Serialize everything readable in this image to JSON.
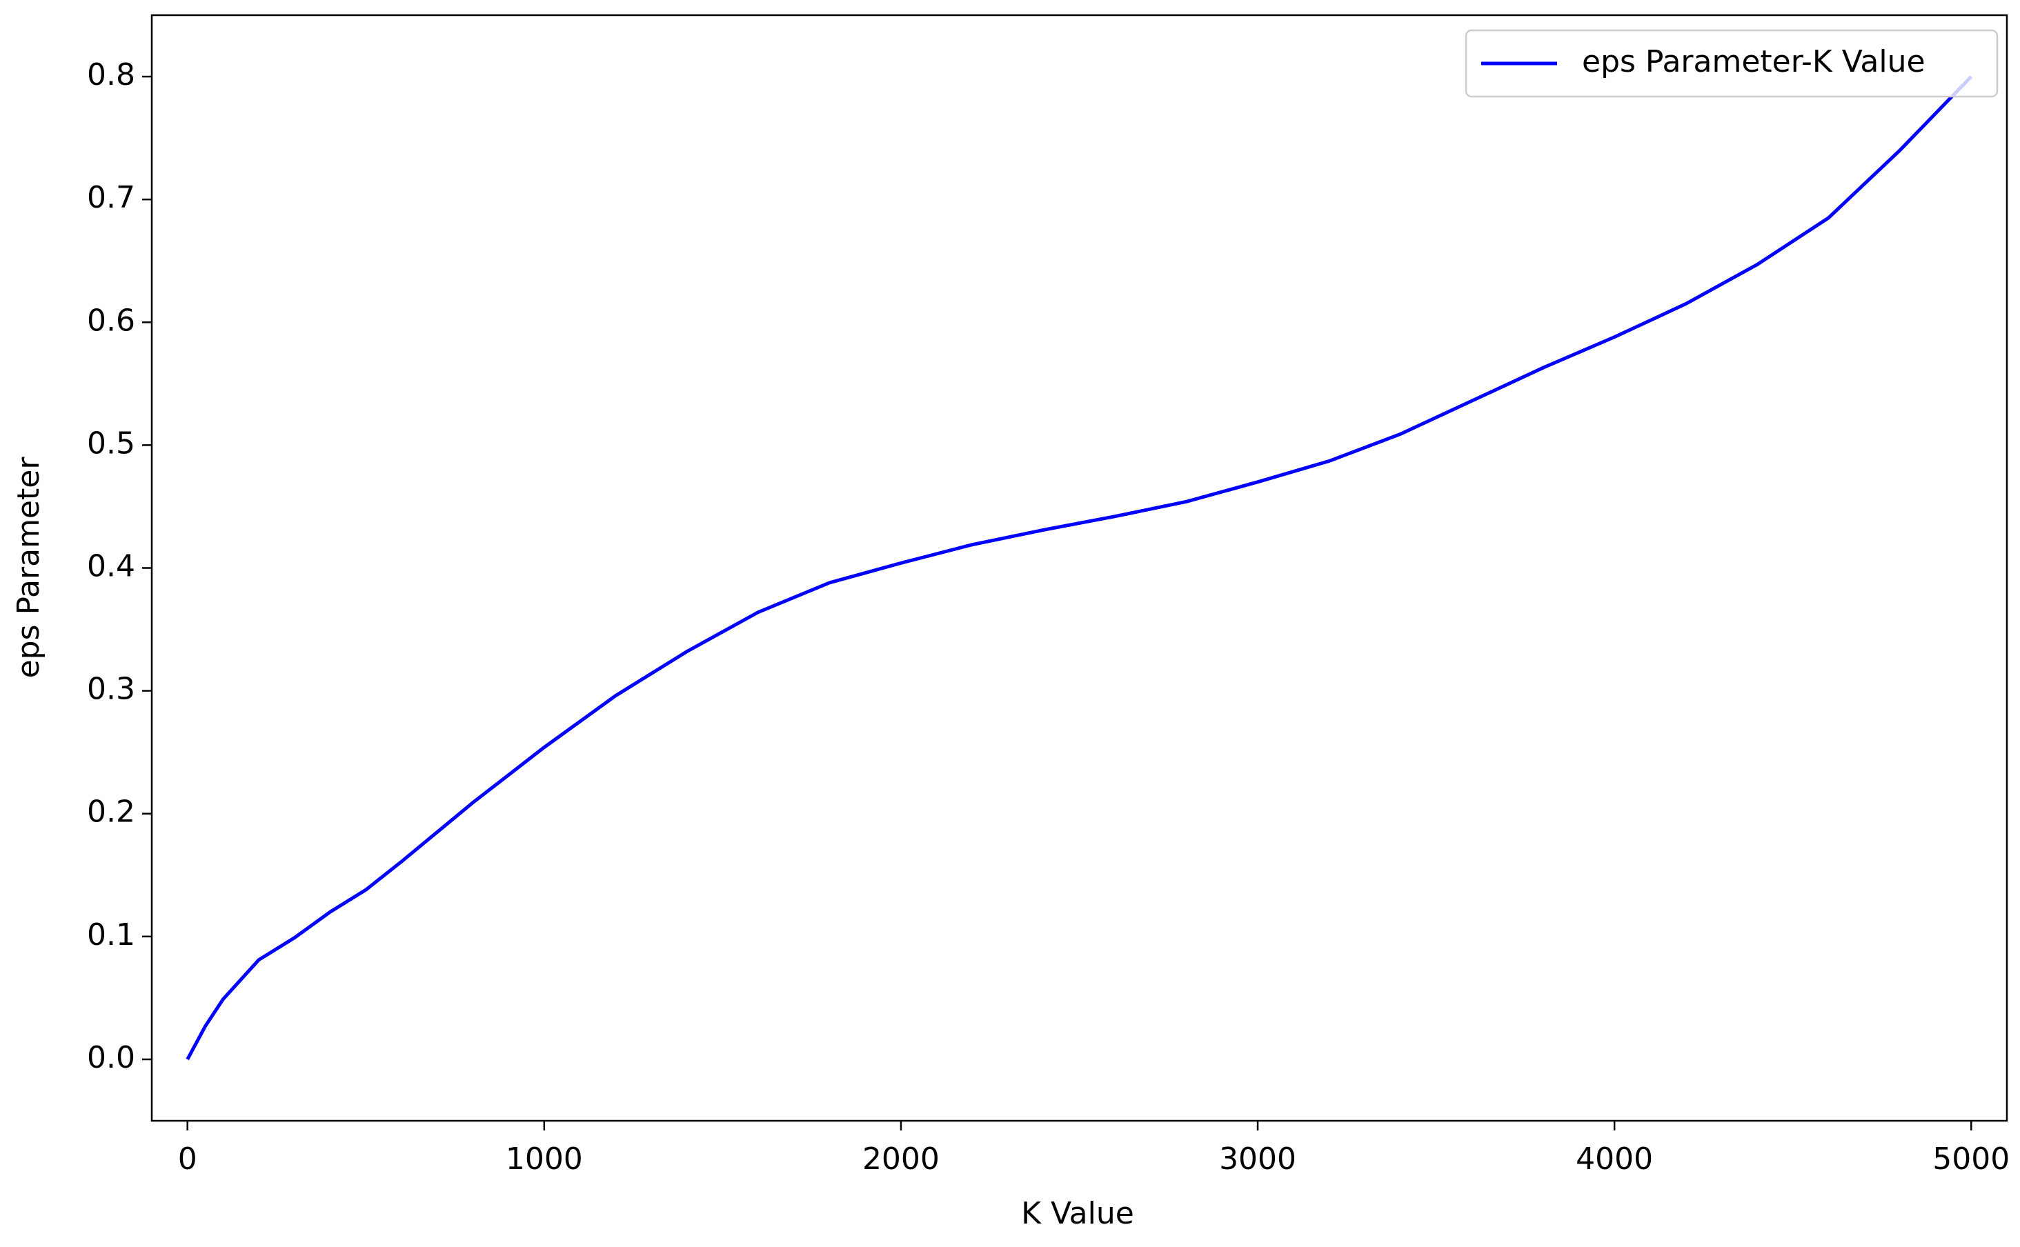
{
  "chart_data": {
    "type": "line",
    "x_label": "K Value",
    "y_label": "eps Parameter",
    "x": [
      0,
      50,
      100,
      200,
      300,
      400,
      500,
      600,
      800,
      1000,
      1200,
      1400,
      1600,
      1800,
      2000,
      2200,
      2400,
      2600,
      2800,
      3000,
      3200,
      3400,
      3600,
      3800,
      4000,
      4200,
      4400,
      4600,
      4800,
      5000
    ],
    "series": [
      {
        "name": "eps Parameter-K Value",
        "color": "#0000ff",
        "values": [
          0,
          0.027,
          0.049,
          0.081,
          0.099,
          0.12,
          0.138,
          0.161,
          0.209,
          0.254,
          0.296,
          0.332,
          0.364,
          0.388,
          0.404,
          0.419,
          0.431,
          0.442,
          0.454,
          0.47,
          0.487,
          0.509,
          0.536,
          0.563,
          0.588,
          0.615,
          0.647,
          0.685,
          0.74,
          0.8
        ]
      }
    ],
    "xlim": [
      -100,
      5100
    ],
    "xticks": [
      0,
      1000,
      2000,
      3000,
      4000,
      5000
    ],
    "ylim": [
      -0.05,
      0.85
    ],
    "yticks": [
      {
        "value": 0,
        "label": "0.0"
      },
      0.1,
      0.2,
      0.3,
      0.4,
      0.5,
      0.6,
      0.7,
      0.8
    ],
    "legend": "upper right"
  }
}
